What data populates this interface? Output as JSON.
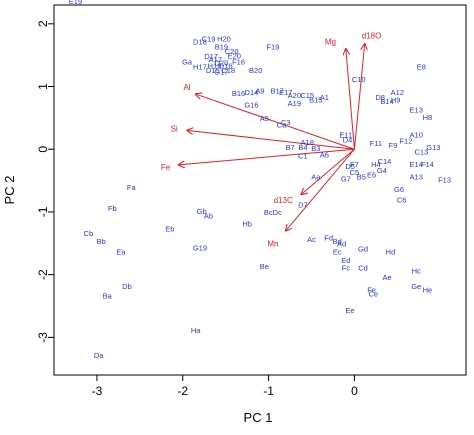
{
  "chart_data": {
    "type": "scatter",
    "subtype": "pca-biplot",
    "xlabel": "PC   1",
    "ylabel": "PC   2",
    "xlim": [
      -3.5,
      1.3
    ],
    "ylim": [
      -3.6,
      2.3
    ],
    "xticks": [
      -3,
      -2,
      -1,
      0
    ],
    "yticks": [
      -3,
      -2,
      -1,
      0,
      1,
      2
    ],
    "grid": false,
    "point_color": "#2a35d6",
    "loading_color": "#e0202a",
    "observations": [
      {
        "label": "E19",
        "x": -3.25,
        "y": 2.35
      },
      {
        "label": "D18",
        "x": -1.8,
        "y": 1.7
      },
      {
        "label": "C19",
        "x": -1.7,
        "y": 1.75
      },
      {
        "label": "H20",
        "x": -1.52,
        "y": 1.75
      },
      {
        "label": "B19",
        "x": -1.55,
        "y": 1.62
      },
      {
        "label": "C20",
        "x": -1.43,
        "y": 1.55
      },
      {
        "label": "D17",
        "x": -1.67,
        "y": 1.47
      },
      {
        "label": "E20",
        "x": -1.4,
        "y": 1.48
      },
      {
        "label": "A17",
        "x": -1.62,
        "y": 1.42
      },
      {
        "label": "D20",
        "x": -1.55,
        "y": 1.37
      },
      {
        "label": "Ga",
        "x": -1.95,
        "y": 1.38
      },
      {
        "label": "H16",
        "x": -1.63,
        "y": 1.32
      },
      {
        "label": "D16",
        "x": -1.5,
        "y": 1.32
      },
      {
        "label": "F16",
        "x": -1.35,
        "y": 1.38
      },
      {
        "label": "H17",
        "x": -1.8,
        "y": 1.3
      },
      {
        "label": "C18",
        "x": -1.47,
        "y": 1.25
      },
      {
        "label": "D15",
        "x": -1.65,
        "y": 1.25
      },
      {
        "label": "G17",
        "x": -1.55,
        "y": 1.22
      },
      {
        "label": "F19",
        "x": -0.95,
        "y": 1.62
      },
      {
        "label": "B20",
        "x": -1.15,
        "y": 1.25
      },
      {
        "label": "Mg",
        "x": -0.28,
        "y": 1.7
      },
      {
        "label": "d18O",
        "x": 0.2,
        "y": 1.8
      },
      {
        "label": "E8",
        "x": 0.78,
        "y": 1.3
      },
      {
        "label": "C10",
        "x": 0.05,
        "y": 1.1
      },
      {
        "label": "B16",
        "x": -1.35,
        "y": 0.88
      },
      {
        "label": "D14",
        "x": -1.2,
        "y": 0.9
      },
      {
        "label": "A9",
        "x": -1.1,
        "y": 0.92
      },
      {
        "label": "B17",
        "x": -0.9,
        "y": 0.92
      },
      {
        "label": "E17",
        "x": -0.8,
        "y": 0.9
      },
      {
        "label": "A20",
        "x": -0.7,
        "y": 0.85
      },
      {
        "label": "G16",
        "x": -1.2,
        "y": 0.7
      },
      {
        "label": "A19",
        "x": -0.7,
        "y": 0.72
      },
      {
        "label": "C15",
        "x": -0.55,
        "y": 0.85
      },
      {
        "label": "B15",
        "x": -0.45,
        "y": 0.78
      },
      {
        "label": "A1",
        "x": -0.35,
        "y": 0.82
      },
      {
        "label": "A12",
        "x": 0.5,
        "y": 0.9
      },
      {
        "label": "D8",
        "x": 0.3,
        "y": 0.82
      },
      {
        "label": "B14",
        "x": 0.38,
        "y": 0.75
      },
      {
        "label": "H9",
        "x": 0.48,
        "y": 0.78
      },
      {
        "label": "E13",
        "x": 0.72,
        "y": 0.62
      },
      {
        "label": "A5",
        "x": -1.05,
        "y": 0.48
      },
      {
        "label": "C3",
        "x": -0.8,
        "y": 0.42
      },
      {
        "label": "Ca",
        "x": -0.85,
        "y": 0.38
      },
      {
        "label": "H8",
        "x": 0.85,
        "y": 0.5
      },
      {
        "label": "B7",
        "x": -0.75,
        "y": 0.02
      },
      {
        "label": "B4",
        "x": -0.6,
        "y": 0.02
      },
      {
        "label": "A18",
        "x": -0.55,
        "y": 0.1
      },
      {
        "label": "C1",
        "x": -0.6,
        "y": -0.12
      },
      {
        "label": "A6",
        "x": -0.35,
        "y": -0.1
      },
      {
        "label": "B3",
        "x": -0.45,
        "y": 0.0
      },
      {
        "label": "E11",
        "x": -0.1,
        "y": 0.22
      },
      {
        "label": "D4",
        "x": -0.08,
        "y": 0.14
      },
      {
        "label": "F11",
        "x": 0.25,
        "y": 0.08
      },
      {
        "label": "F9",
        "x": 0.45,
        "y": 0.05
      },
      {
        "label": "A10",
        "x": 0.72,
        "y": 0.22
      },
      {
        "label": "G13",
        "x": 0.92,
        "y": 0.02
      },
      {
        "label": "C13",
        "x": 0.78,
        "y": -0.05
      },
      {
        "label": "F12",
        "x": 0.6,
        "y": 0.12
      },
      {
        "label": "E14",
        "x": 0.72,
        "y": -0.25
      },
      {
        "label": "F14",
        "x": 0.85,
        "y": -0.25
      },
      {
        "label": "F13",
        "x": 1.05,
        "y": -0.5
      },
      {
        "label": "A13",
        "x": 0.72,
        "y": -0.45
      },
      {
        "label": "C14",
        "x": 0.35,
        "y": -0.2
      },
      {
        "label": "G4",
        "x": 0.32,
        "y": -0.35
      },
      {
        "label": "H4",
        "x": 0.25,
        "y": -0.25
      },
      {
        "label": "F7",
        "x": 0.0,
        "y": -0.25
      },
      {
        "label": "C5",
        "x": 0.0,
        "y": -0.38
      },
      {
        "label": "D5",
        "x": -0.05,
        "y": -0.28
      },
      {
        "label": "G7",
        "x": -0.1,
        "y": -0.48
      },
      {
        "label": "B5",
        "x": 0.08,
        "y": -0.45
      },
      {
        "label": "E6",
        "x": 0.2,
        "y": -0.42
      },
      {
        "label": "G6",
        "x": 0.52,
        "y": -0.65
      },
      {
        "label": "C6",
        "x": 0.55,
        "y": -0.82
      },
      {
        "label": "Aa",
        "x": -0.45,
        "y": -0.45
      },
      {
        "label": "D7",
        "x": -0.6,
        "y": -0.9
      },
      {
        "label": "d13C",
        "x": -0.83,
        "y": -0.82
      },
      {
        "label": "BcDc",
        "x": -0.95,
        "y": -1.02
      },
      {
        "label": "Gb",
        "x": -1.78,
        "y": -1.0
      },
      {
        "label": "Ab",
        "x": -1.7,
        "y": -1.07
      },
      {
        "label": "Hb",
        "x": -1.25,
        "y": -1.2
      },
      {
        "label": "Fa",
        "x": -2.6,
        "y": -0.62
      },
      {
        "label": "Fb",
        "x": -2.82,
        "y": -0.95
      },
      {
        "label": "Eb",
        "x": -2.15,
        "y": -1.28
      },
      {
        "label": "Cb",
        "x": -3.1,
        "y": -1.35
      },
      {
        "label": "Bb",
        "x": -2.95,
        "y": -1.48
      },
      {
        "label": "Ea",
        "x": -2.72,
        "y": -1.65
      },
      {
        "label": "G19",
        "x": -1.8,
        "y": -1.58
      },
      {
        "label": "Mn",
        "x": -0.95,
        "y": -1.52
      },
      {
        "label": "Ac",
        "x": -0.5,
        "y": -1.45
      },
      {
        "label": "Fd",
        "x": -0.3,
        "y": -1.42
      },
      {
        "label": "Bd",
        "x": -0.2,
        "y": -1.48
      },
      {
        "label": "Ad",
        "x": -0.15,
        "y": -1.52
      },
      {
        "label": "Ec",
        "x": -0.2,
        "y": -1.65
      },
      {
        "label": "Gd",
        "x": 0.1,
        "y": -1.6
      },
      {
        "label": "Hd",
        "x": 0.42,
        "y": -1.65
      },
      {
        "label": "Ed",
        "x": -0.1,
        "y": -1.78
      },
      {
        "label": "Be",
        "x": -1.05,
        "y": -1.88
      },
      {
        "label": "Fc",
        "x": -0.1,
        "y": -1.9
      },
      {
        "label": "Cd",
        "x": 0.1,
        "y": -1.9
      },
      {
        "label": "Hc",
        "x": 0.72,
        "y": -1.95
      },
      {
        "label": "Ae",
        "x": 0.38,
        "y": -2.05
      },
      {
        "label": "Ge",
        "x": 0.72,
        "y": -2.2
      },
      {
        "label": "He",
        "x": 0.85,
        "y": -2.25
      },
      {
        "label": "Fe",
        "x": 0.2,
        "y": -2.25
      },
      {
        "label": "Ce",
        "x": 0.22,
        "y": -2.32
      },
      {
        "label": "Db",
        "x": -2.65,
        "y": -2.2
      },
      {
        "label": "Ba",
        "x": -2.88,
        "y": -2.35
      },
      {
        "label": "Ee",
        "x": -0.05,
        "y": -2.58
      },
      {
        "label": "Ha",
        "x": -1.85,
        "y": -2.9
      },
      {
        "label": "Da",
        "x": -2.98,
        "y": -3.3
      }
    ],
    "loadings": [
      {
        "label": "Mg",
        "x": -0.1,
        "y": 1.6,
        "lx": -0.28,
        "ly": 1.7
      },
      {
        "label": "d18O",
        "x": 0.12,
        "y": 1.68,
        "lx": 0.2,
        "ly": 1.8
      },
      {
        "label": "Al",
        "x": -1.85,
        "y": 0.88,
        "lx": -1.95,
        "ly": 0.98
      },
      {
        "label": "Si",
        "x": -1.95,
        "y": 0.3,
        "lx": -2.1,
        "ly": 0.32
      },
      {
        "label": "Fe",
        "x": -2.05,
        "y": -0.25,
        "lx": -2.2,
        "ly": -0.3
      },
      {
        "label": "d13C",
        "x": -0.62,
        "y": -0.72,
        "lx": -0.83,
        "ly": -0.82
      },
      {
        "label": "Mn",
        "x": -0.8,
        "y": -1.3,
        "lx": -0.95,
        "ly": -1.52
      }
    ]
  }
}
